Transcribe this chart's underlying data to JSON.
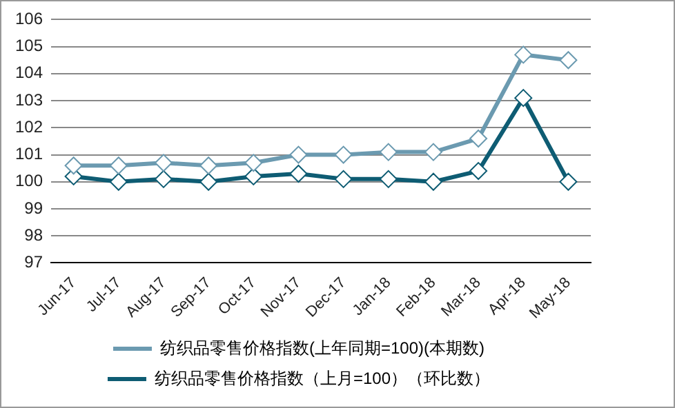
{
  "chart_data": {
    "type": "line",
    "categories": [
      "Jun-17",
      "Jul-17",
      "Aug-17",
      "Sep-17",
      "Oct-17",
      "Nov-17",
      "Dec-17",
      "Jan-18",
      "Feb-18",
      "Mar-18",
      "Apr-18",
      "May-18"
    ],
    "series": [
      {
        "name": "纺织品零售价格指数(上年同期=100)(本期数)",
        "color": "#6b9ab0",
        "values": [
          100.6,
          100.6,
          100.7,
          100.6,
          100.7,
          101.0,
          101.0,
          101.1,
          101.1,
          101.6,
          104.7,
          104.5
        ]
      },
      {
        "name": "纺织品零售价格指数（上月=100）（环比数）",
        "color": "#0e5c73",
        "values": [
          100.2,
          100.0,
          100.1,
          100.0,
          100.2,
          100.3,
          100.1,
          100.1,
          100.0,
          100.4,
          103.1,
          100.0
        ]
      }
    ],
    "ylim": [
      97,
      106
    ],
    "yticks": [
      97,
      98,
      99,
      100,
      101,
      102,
      103,
      104,
      105,
      106
    ],
    "grid": "y",
    "legend": "bottom",
    "marker": "diamond",
    "line_style": "solid"
  }
}
